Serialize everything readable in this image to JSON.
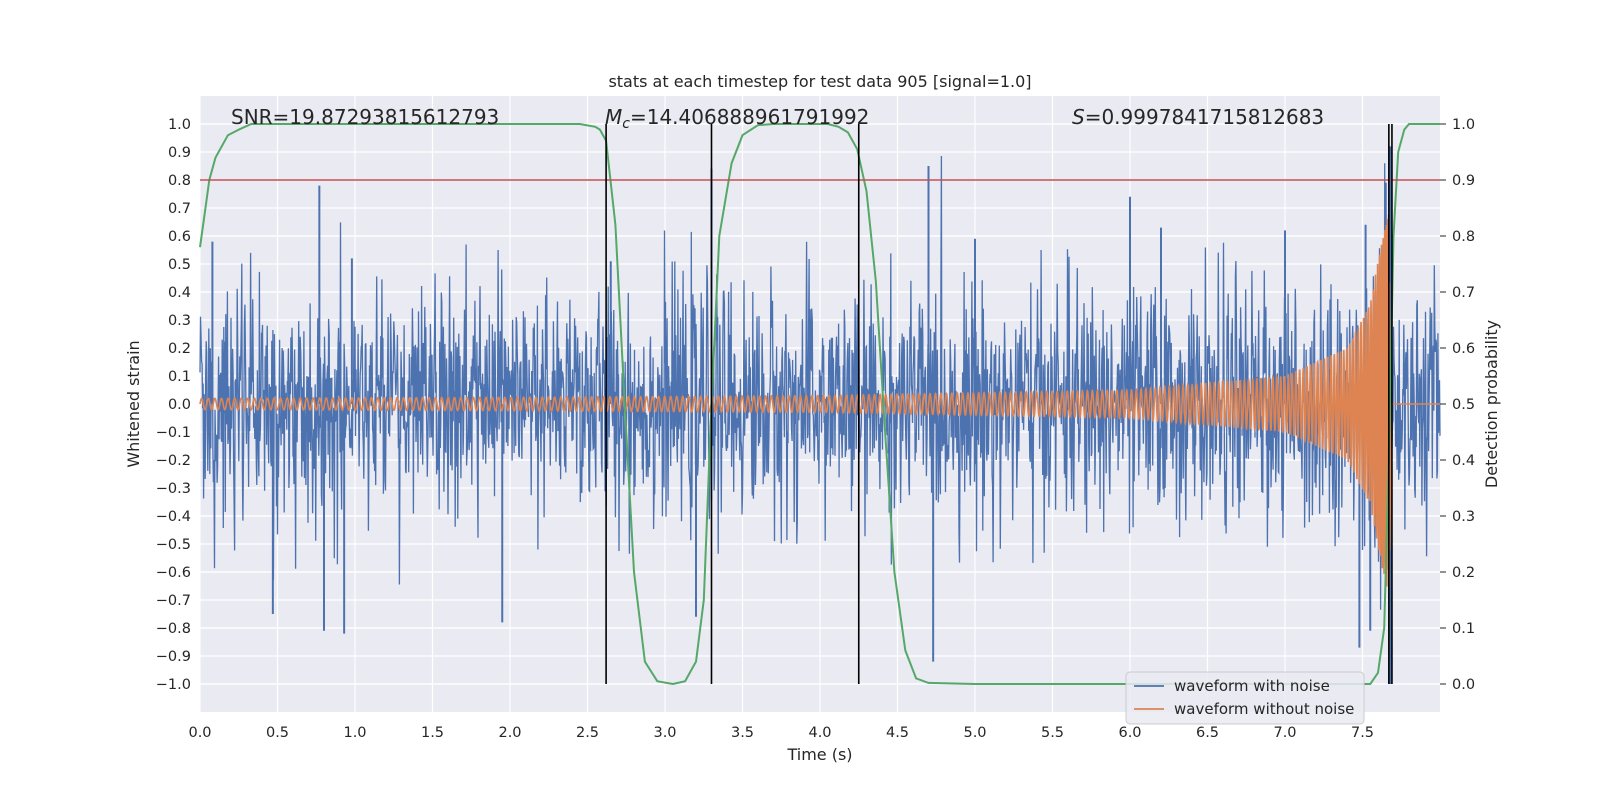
{
  "chart_data": {
    "type": "line",
    "title": "stats at each timestep for test data 905 [signal=1.0]",
    "xlabel": "Time (s)",
    "ylabel": "Whitened strain",
    "ylabel_right": "Detection probability",
    "xlim": [
      0.0,
      8.0
    ],
    "ylim": [
      -1.1,
      1.1
    ],
    "ylim_right": [
      -0.05,
      1.05
    ],
    "xticks": [
      0.0,
      0.5,
      1.0,
      1.5,
      2.0,
      2.5,
      3.0,
      3.5,
      4.0,
      4.5,
      5.0,
      5.5,
      6.0,
      6.5,
      7.0,
      7.5
    ],
    "xtick_labels": [
      "0.0",
      "0.5",
      "1.0",
      "1.5",
      "2.0",
      "2.5",
      "3.0",
      "3.5",
      "4.0",
      "4.5",
      "5.0",
      "5.5",
      "6.0",
      "6.5",
      "7.0",
      "7.5"
    ],
    "yticks": [
      1.0,
      0.9,
      0.8,
      0.7,
      0.6,
      0.5,
      0.4,
      0.3,
      0.2,
      0.1,
      0.0,
      -0.1,
      -0.2,
      -0.3,
      -0.4,
      -0.5,
      -0.6,
      -0.7,
      -0.8,
      -0.9,
      -1.0
    ],
    "ytick_labels": [
      "1.0",
      "0.9",
      "0.8",
      "0.7",
      "0.6",
      "0.5",
      "0.4",
      "0.3",
      "0.2",
      "0.1",
      "0.0",
      "−0.1",
      "−0.2",
      "−0.3",
      "−0.4",
      "−0.5",
      "−0.6",
      "−0.7",
      "−0.8",
      "−0.9",
      "−1.0"
    ],
    "yticks_right": [
      1.0,
      0.9,
      0.8,
      0.7,
      0.6,
      0.5,
      0.4,
      0.3,
      0.2,
      0.1,
      0.0
    ],
    "ytick_labels_right": [
      "1.0",
      "0.9",
      "0.8",
      "0.7",
      "0.6",
      "0.5",
      "0.4",
      "0.3",
      "0.2",
      "0.1",
      "0.0"
    ],
    "grid": true,
    "legend_position": "bottom-right",
    "annotations": {
      "snr": "SNR=19.87293815612793",
      "mc_symbol": "M",
      "mc_sub": "c",
      "mc_value": "=14.406888961791992",
      "s_symbol": "S",
      "s_value": "=0.9997841715812683"
    },
    "series": [
      {
        "name": "waveform with noise",
        "color": "#4c72b0",
        "description": "Whitened strain with noise, dense fluctuation roughly within -0.8 to 0.85",
        "envelope_peaks_pos": [
          [
            0.08,
            0.58
          ],
          [
            0.77,
            0.78
          ],
          [
            0.98,
            0.52
          ],
          [
            2.65,
            0.51
          ],
          [
            3.3,
            0.84
          ],
          [
            4.7,
            0.85
          ],
          [
            5.0,
            0.59
          ],
          [
            6.0,
            0.74
          ],
          [
            6.2,
            0.63
          ],
          [
            7.0,
            0.62
          ],
          [
            7.52,
            0.64
          ],
          [
            7.65,
            0.79
          ],
          [
            7.68,
            0.92
          ]
        ],
        "envelope_peaks_neg": [
          [
            0.47,
            -0.75
          ],
          [
            0.8,
            -0.81
          ],
          [
            0.93,
            -0.82
          ],
          [
            1.95,
            -0.78
          ],
          [
            3.2,
            -0.76
          ],
          [
            4.73,
            -0.92
          ],
          [
            7.48,
            -0.87
          ],
          [
            7.55,
            -0.81
          ],
          [
            7.68,
            -1.0
          ]
        ]
      },
      {
        "name": "waveform without noise",
        "color": "#dd8452",
        "description": "Chirp signal growing in amplitude toward merger near 7.67 s",
        "amplitude_envelope": [
          [
            0.0,
            0.02
          ],
          [
            2.0,
            0.024
          ],
          [
            4.0,
            0.03
          ],
          [
            6.0,
            0.05
          ],
          [
            7.0,
            0.1
          ],
          [
            7.4,
            0.2
          ],
          [
            7.55,
            0.36
          ],
          [
            7.62,
            0.57
          ],
          [
            7.67,
            0.68
          ],
          [
            7.69,
            0.0
          ],
          [
            8.0,
            0.0
          ]
        ]
      },
      {
        "name": "detection probability",
        "color": "#55a868",
        "axis": "right",
        "x": [
          0.0,
          0.03,
          0.06,
          0.1,
          0.18,
          0.25,
          0.33,
          0.5,
          1.0,
          2.0,
          2.45,
          2.55,
          2.58,
          2.62,
          2.68,
          2.74,
          2.8,
          2.87,
          2.95,
          3.05,
          3.13,
          3.2,
          3.25,
          3.3,
          3.35,
          3.43,
          3.5,
          3.6,
          3.7,
          3.9,
          4.05,
          4.12,
          4.18,
          4.24,
          4.3,
          4.36,
          4.42,
          4.48,
          4.55,
          4.62,
          4.7,
          5.0,
          6.0,
          7.0,
          7.55,
          7.6,
          7.64,
          7.67,
          7.7,
          7.73,
          7.77,
          7.8,
          7.9,
          8.0
        ],
        "y": [
          0.78,
          0.84,
          0.9,
          0.94,
          0.98,
          0.99,
          1.0,
          1.0,
          1.0,
          1.0,
          1.0,
          0.995,
          0.99,
          0.97,
          0.82,
          0.5,
          0.2,
          0.04,
          0.005,
          0.0,
          0.005,
          0.04,
          0.15,
          0.5,
          0.8,
          0.93,
          0.98,
          0.998,
          1.0,
          1.0,
          1.0,
          0.995,
          0.985,
          0.955,
          0.88,
          0.72,
          0.45,
          0.2,
          0.06,
          0.01,
          0.002,
          0.0,
          0.0,
          0.0,
          0.0,
          0.02,
          0.1,
          0.4,
          0.8,
          0.95,
          0.99,
          1.0,
          1.0,
          1.0
        ]
      }
    ],
    "threshold_line": {
      "y_right": 0.9,
      "color": "#c44e52"
    },
    "vertical_lines_x": [
      2.62,
      3.3,
      4.25,
      7.67,
      7.69
    ],
    "legend": [
      {
        "label": "waveform with noise",
        "color": "#4c72b0"
      },
      {
        "label": "waveform without noise",
        "color": "#dd8452"
      }
    ]
  }
}
